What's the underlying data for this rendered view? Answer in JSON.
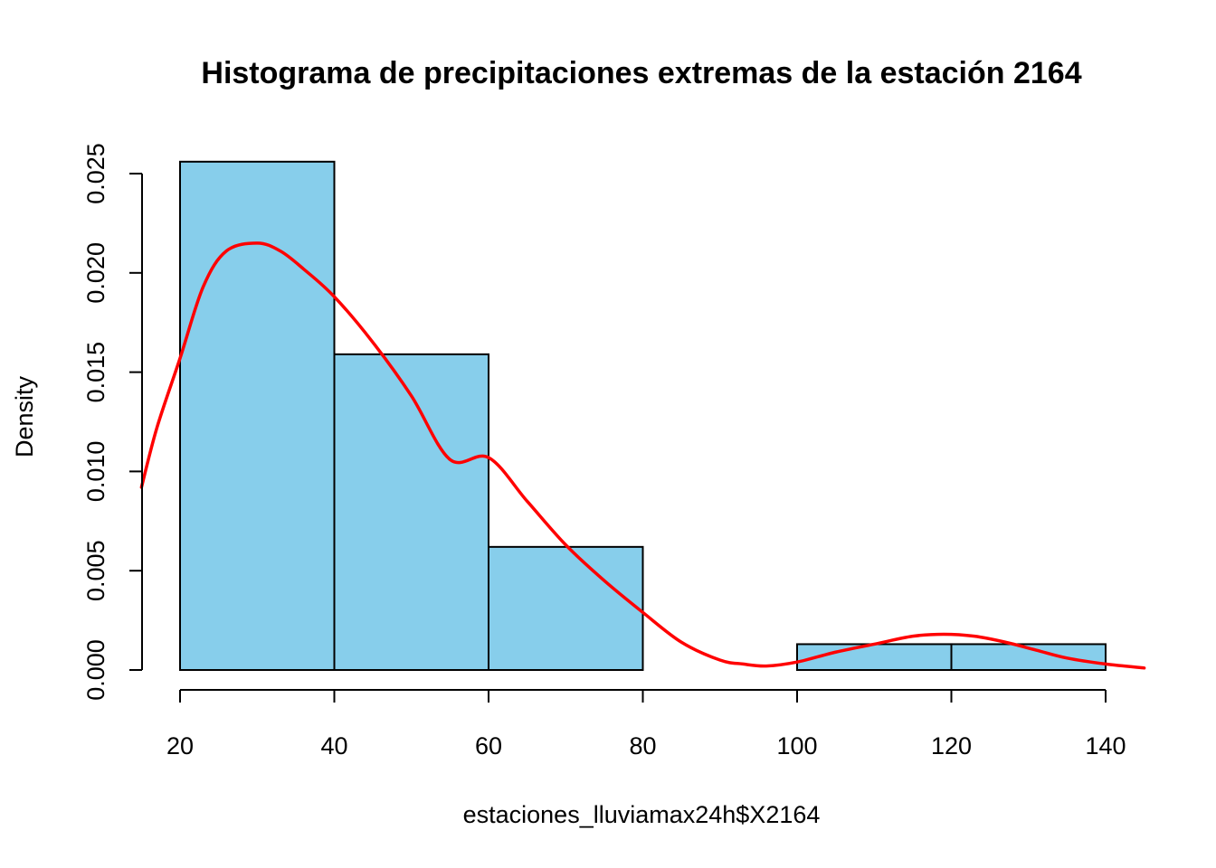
{
  "chart_data": {
    "type": "bar",
    "title": "Histograma de precipitaciones extremas de  la estación 2164",
    "xlabel": "estaciones_lluviamax24h$X2164",
    "ylabel": "Density",
    "bins": [
      [
        20,
        40
      ],
      [
        40,
        60
      ],
      [
        60,
        80
      ],
      [
        80,
        100
      ],
      [
        100,
        120
      ],
      [
        120,
        140
      ]
    ],
    "values": [
      0.0256,
      0.0159,
      0.0062,
      0.0,
      0.0013,
      0.0013
    ],
    "xlim": [
      15,
      145
    ],
    "ylim": [
      0,
      0.025
    ],
    "x_ticks": [
      20,
      40,
      60,
      80,
      100,
      120,
      140
    ],
    "x_tick_labels": [
      "20",
      "40",
      "60",
      "80",
      "100",
      "120",
      "140"
    ],
    "y_ticks": [
      0,
      0.005,
      0.01,
      0.015,
      0.02,
      0.025
    ],
    "y_tick_labels": [
      "0.000",
      "0.005",
      "0.010",
      "0.015",
      "0.020",
      "0.025"
    ],
    "density_curve": {
      "x": [
        15,
        17,
        20,
        23,
        26,
        30,
        33,
        36,
        40,
        45,
        50,
        55,
        60,
        65,
        70,
        75,
        80,
        85,
        90,
        93,
        96,
        100,
        105,
        110,
        115,
        119,
        123,
        127,
        131,
        135,
        140,
        145
      ],
      "y": [
        0.0092,
        0.0122,
        0.0157,
        0.0193,
        0.0211,
        0.0215,
        0.0211,
        0.0202,
        0.0188,
        0.0165,
        0.0138,
        0.0106,
        0.0107,
        0.0085,
        0.0063,
        0.0045,
        0.0029,
        0.0014,
        0.0005,
        0.0003,
        0.0002,
        0.0004,
        0.0009,
        0.0013,
        0.0017,
        0.0018,
        0.0017,
        0.0014,
        0.001,
        0.0006,
        0.0003,
        0.0001
      ]
    },
    "grid": false,
    "legend": "none",
    "colors": {
      "bar_fill": "#87CEEB",
      "bar_stroke": "#000000",
      "curve": "#FF0000"
    }
  }
}
